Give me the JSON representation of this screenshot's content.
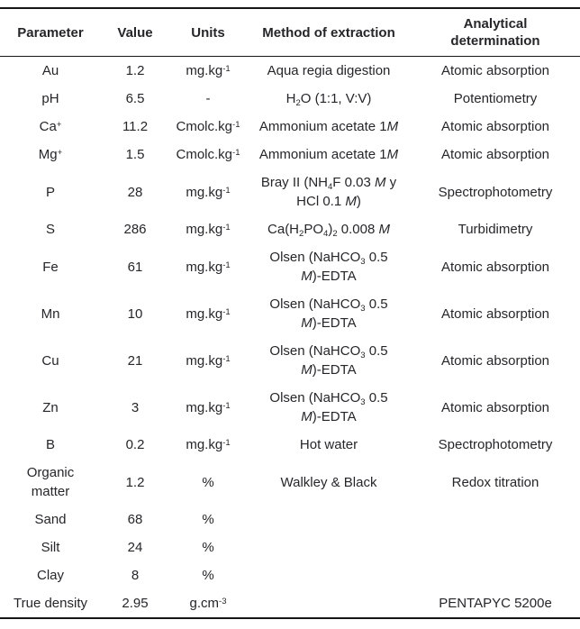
{
  "colors": {
    "text": "#26262a",
    "rule": "#151515",
    "background": "#ffffff"
  },
  "table": {
    "headers": [
      {
        "id": "parameter",
        "label": "Parameter"
      },
      {
        "id": "value",
        "label": "Value"
      },
      {
        "id": "units",
        "label": "Units"
      },
      {
        "id": "method",
        "label": "Method of extraction"
      },
      {
        "id": "determination",
        "label": "Analytical\ndetermination"
      }
    ],
    "rows": [
      {
        "parameter": [
          [
            "t",
            "Au"
          ]
        ],
        "value": "1.2",
        "units": [
          [
            "t",
            "mg.kg"
          ],
          [
            "sup",
            "-1"
          ]
        ],
        "method": [
          [
            "t",
            "Aqua regia digestion"
          ]
        ],
        "determination": "Atomic absorption"
      },
      {
        "parameter": [
          [
            "t",
            "pH"
          ]
        ],
        "value": "6.5",
        "units": [
          [
            "t",
            "-"
          ]
        ],
        "method": [
          [
            "t",
            "H"
          ],
          [
            "sub",
            "2"
          ],
          [
            "t",
            "O (1:1, V:V)"
          ]
        ],
        "determination": "Potentiometry"
      },
      {
        "parameter": [
          [
            "t",
            "Ca"
          ],
          [
            "sup",
            "+"
          ]
        ],
        "value": "11.2",
        "units": [
          [
            "t",
            "Cmolc.kg"
          ],
          [
            "sup",
            "-1"
          ]
        ],
        "method": [
          [
            "t",
            "Ammonium acetate 1"
          ],
          [
            "i",
            "M"
          ]
        ],
        "determination": "Atomic absorption"
      },
      {
        "parameter": [
          [
            "t",
            "Mg"
          ],
          [
            "sup",
            "+"
          ]
        ],
        "value": "1.5",
        "units": [
          [
            "t",
            "Cmolc.kg"
          ],
          [
            "sup",
            "-1"
          ]
        ],
        "method": [
          [
            "t",
            "Ammonium acetate 1"
          ],
          [
            "i",
            "M"
          ]
        ],
        "determination": "Atomic absorption"
      },
      {
        "parameter": [
          [
            "t",
            "P"
          ]
        ],
        "value": "28",
        "units": [
          [
            "t",
            "mg.kg"
          ],
          [
            "sup",
            "-1"
          ]
        ],
        "method": [
          [
            "t",
            "Bray II (NH"
          ],
          [
            "sub",
            "4"
          ],
          [
            "t",
            "F 0.03 "
          ],
          [
            "i",
            "M"
          ],
          [
            "t",
            " y"
          ],
          [
            "br"
          ],
          [
            "t",
            "HCl 0.1 "
          ],
          [
            "i",
            "M"
          ],
          [
            "t",
            ")"
          ]
        ],
        "determination": "Spectrophotometry"
      },
      {
        "parameter": [
          [
            "t",
            "S"
          ]
        ],
        "value": "286",
        "units": [
          [
            "t",
            "mg.kg"
          ],
          [
            "sup",
            "-1"
          ]
        ],
        "method": [
          [
            "t",
            "Ca(H"
          ],
          [
            "sub",
            "2"
          ],
          [
            "t",
            "PO"
          ],
          [
            "sub",
            "4"
          ],
          [
            "t",
            ")"
          ],
          [
            "sub",
            "2"
          ],
          [
            "t",
            " 0.008 "
          ],
          [
            "i",
            "M"
          ]
        ],
        "determination": "Turbidimetry"
      },
      {
        "parameter": [
          [
            "t",
            "Fe"
          ]
        ],
        "value": "61",
        "units": [
          [
            "t",
            "mg.kg"
          ],
          [
            "sup",
            "-1"
          ]
        ],
        "method": [
          [
            "t",
            "Olsen (NaHCO"
          ],
          [
            "sub",
            "3"
          ],
          [
            "t",
            " 0.5"
          ],
          [
            "br"
          ],
          [
            "i",
            "M"
          ],
          [
            "t",
            ")-EDTA"
          ]
        ],
        "determination": "Atomic absorption"
      },
      {
        "parameter": [
          [
            "t",
            "Mn"
          ]
        ],
        "value": "10",
        "units": [
          [
            "t",
            "mg.kg"
          ],
          [
            "sup",
            "-1"
          ]
        ],
        "method": [
          [
            "t",
            "Olsen (NaHCO"
          ],
          [
            "sub",
            "3"
          ],
          [
            "t",
            " 0.5"
          ],
          [
            "br"
          ],
          [
            "i",
            "M"
          ],
          [
            "t",
            ")-EDTA"
          ]
        ],
        "determination": "Atomic absorption"
      },
      {
        "parameter": [
          [
            "t",
            "Cu"
          ]
        ],
        "value": "21",
        "units": [
          [
            "t",
            "mg.kg"
          ],
          [
            "sup",
            "-1"
          ]
        ],
        "method": [
          [
            "t",
            "Olsen (NaHCO"
          ],
          [
            "sub",
            "3"
          ],
          [
            "t",
            " 0.5"
          ],
          [
            "br"
          ],
          [
            "i",
            "M"
          ],
          [
            "t",
            ")-EDTA"
          ]
        ],
        "determination": "Atomic absorption"
      },
      {
        "parameter": [
          [
            "t",
            "Zn"
          ]
        ],
        "value": "3",
        "units": [
          [
            "t",
            "mg.kg"
          ],
          [
            "sup",
            "-1"
          ]
        ],
        "method": [
          [
            "t",
            "Olsen (NaHCO"
          ],
          [
            "sub",
            "3"
          ],
          [
            "t",
            " 0.5"
          ],
          [
            "br"
          ],
          [
            "i",
            "M"
          ],
          [
            "t",
            ")-EDTA"
          ]
        ],
        "determination": "Atomic absorption"
      },
      {
        "parameter": [
          [
            "t",
            "B"
          ]
        ],
        "value": "0.2",
        "units": [
          [
            "t",
            "mg.kg"
          ],
          [
            "sup",
            "-1"
          ]
        ],
        "method": [
          [
            "t",
            "Hot water"
          ]
        ],
        "determination": "Spectrophotometry"
      },
      {
        "parameter": [
          [
            "t",
            "Organic"
          ],
          [
            "br"
          ],
          [
            "t",
            "matter"
          ]
        ],
        "value": "1.2",
        "units": [
          [
            "t",
            "%"
          ]
        ],
        "method": [
          [
            "t",
            "Walkley & Black"
          ]
        ],
        "determination": "Redox titration"
      },
      {
        "parameter": [
          [
            "t",
            "Sand"
          ]
        ],
        "value": "68",
        "units": [
          [
            "t",
            "%"
          ]
        ],
        "method": [],
        "determination": ""
      },
      {
        "parameter": [
          [
            "t",
            "Silt"
          ]
        ],
        "value": "24",
        "units": [
          [
            "t",
            "%"
          ]
        ],
        "method": [],
        "determination": ""
      },
      {
        "parameter": [
          [
            "t",
            "Clay"
          ]
        ],
        "value": "8",
        "units": [
          [
            "t",
            "%"
          ]
        ],
        "method": [],
        "determination": ""
      },
      {
        "parameter": [
          [
            "t",
            "True density"
          ]
        ],
        "value": "2.95",
        "units": [
          [
            "t",
            "g.cm"
          ],
          [
            "sup",
            "-3"
          ]
        ],
        "method": [],
        "determination": "PENTAPYC 5200e"
      }
    ]
  }
}
